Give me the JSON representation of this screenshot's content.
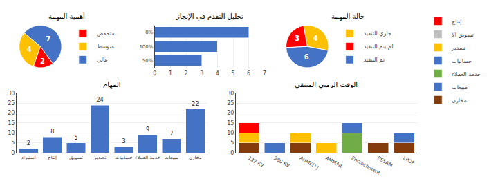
{
  "chart_data": [
    {
      "type": "pie",
      "title": "أهمية المهمة",
      "categories": [
        "عالي",
        "متوسط",
        "متخفض"
      ],
      "values": [
        7,
        4,
        2
      ],
      "colors": [
        "#4472c4",
        "#ffc000",
        "#ff0000"
      ],
      "data_labels": true,
      "legend": "right"
    },
    {
      "type": "bar",
      "title": "تحليل التقدم في الإنجاز",
      "orientation": "horizontal",
      "categories": [
        "50%",
        "100%",
        "0%"
      ],
      "values": [
        3,
        4,
        6
      ],
      "color": "#4472c4",
      "xlim": [
        0,
        7
      ],
      "xticks": [
        0,
        1,
        2,
        3,
        4,
        5,
        6,
        7
      ],
      "grid": true
    },
    {
      "type": "pie",
      "title": "حالة المهمة",
      "categories": [
        "جاري التنفيذ",
        "لم يتم التنفيذ",
        "تم التنفيذ"
      ],
      "values": [
        4,
        3,
        6
      ],
      "colors": [
        "#ffc000",
        "#ff0000",
        "#4472c4"
      ],
      "data_labels": true,
      "legend": "right"
    },
    {
      "type": "bar",
      "title": "الوقت الزمني المتبقي",
      "stacked": true,
      "categories": [
        "132 KV",
        "380 KV",
        "AHMED J",
        "AMMAR",
        "Encrochment",
        "ESSAM",
        "LPOF"
      ],
      "series": [
        {
          "name": "مخازن",
          "color": "#843c0c",
          "values": [
            5,
            0,
            5,
            0,
            0,
            5,
            5
          ]
        },
        {
          "name": "مبيعات",
          "color": "#4472c4",
          "values": [
            0,
            5,
            0,
            0,
            0,
            0,
            5
          ]
        },
        {
          "name": "خدمة العملاء",
          "color": "#70ad47",
          "values": [
            0,
            0,
            0,
            0,
            10,
            0,
            0
          ]
        },
        {
          "name": "حسابيات",
          "color": "#4472c4",
          "values": [
            0,
            0,
            0,
            0,
            5,
            0,
            0
          ]
        },
        {
          "name": "تصدير",
          "color": "#ffc000",
          "values": [
            5,
            0,
            5,
            5,
            0,
            0,
            0
          ]
        },
        {
          "name": "تسويق الا",
          "color": "#bfbfbf",
          "values": [
            0,
            0,
            0,
            0,
            0,
            0,
            0
          ]
        },
        {
          "name": "إنتاج",
          "color": "#ff0000",
          "values": [
            5,
            0,
            0,
            0,
            0,
            0,
            0
          ]
        }
      ],
      "ylim": [
        0,
        30
      ],
      "yticks": [
        0,
        5,
        10,
        15,
        20,
        25,
        30
      ],
      "grid": true,
      "legend": "right"
    },
    {
      "type": "bar",
      "title": "المهام",
      "categories": [
        "استيراد",
        "إنتاج",
        "تسويق",
        "تصدير",
        "حسابيات",
        "خدمة العملاء",
        "مبيعات",
        "مخازن"
      ],
      "values": [
        2,
        8,
        5,
        24,
        3,
        9,
        7,
        22
      ],
      "color": "#4472c4",
      "ylim": [
        0,
        30
      ],
      "yticks": [
        0,
        5,
        10,
        15,
        20,
        25,
        30
      ],
      "grid": true,
      "data_labels": true
    }
  ]
}
